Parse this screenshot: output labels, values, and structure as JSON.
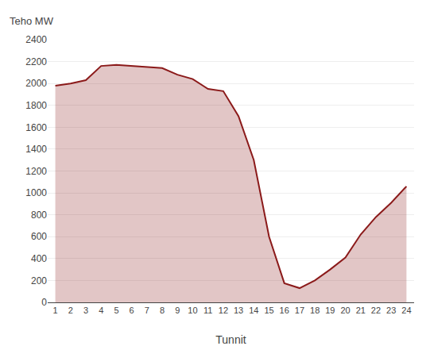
{
  "chart_data": {
    "type": "area",
    "xlabel": "Tunnit",
    "ylabel": "Teho MW",
    "x": [
      1,
      2,
      3,
      4,
      5,
      6,
      7,
      8,
      9,
      10,
      11,
      12,
      13,
      14,
      15,
      16,
      17,
      18,
      19,
      20,
      21,
      22,
      23,
      24
    ],
    "values": [
      1980,
      2000,
      2030,
      2160,
      2170,
      2160,
      2150,
      2140,
      2080,
      2040,
      1950,
      1930,
      1700,
      1300,
      600,
      175,
      130,
      200,
      300,
      410,
      620,
      780,
      910,
      1060
    ],
    "color": "#8B1A1A",
    "xlim": [
      0.5,
      24.5
    ],
    "xticks": [
      1,
      2,
      3,
      4,
      5,
      6,
      7,
      8,
      9,
      10,
      11,
      12,
      13,
      14,
      15,
      16,
      17,
      18,
      19,
      20,
      21,
      22,
      23,
      24
    ],
    "ylim": [
      0,
      2400
    ],
    "yticks": [
      0,
      200,
      400,
      600,
      800,
      1000,
      1200,
      1400,
      1600,
      1800,
      2000,
      2200,
      2400
    ],
    "grid": true
  }
}
